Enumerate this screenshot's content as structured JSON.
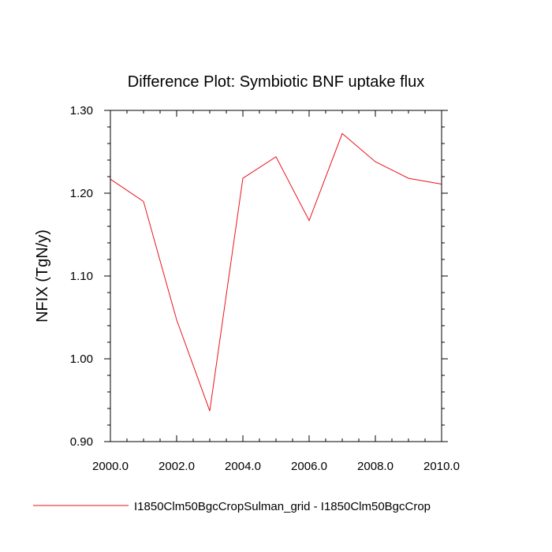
{
  "chart_data": {
    "type": "line",
    "title": "Difference Plot: Symbiotic BNF uptake flux",
    "xlabel": "",
    "ylabel": "NFIX  (TgN/y)",
    "xlim": [
      2000,
      2010
    ],
    "ylim": [
      0.9,
      1.3
    ],
    "xticks": [
      {
        "value": 2000,
        "label": "2000.0"
      },
      {
        "value": 2002,
        "label": "2002.0"
      },
      {
        "value": 2004,
        "label": "2004.0"
      },
      {
        "value": 2006,
        "label": "2006.0"
      },
      {
        "value": 2008,
        "label": "2008.0"
      },
      {
        "value": 2010,
        "label": "2010.0"
      }
    ],
    "yticks": [
      {
        "value": 0.9,
        "label": "0.90"
      },
      {
        "value": 1.0,
        "label": "1.00"
      },
      {
        "value": 1.1,
        "label": "1.10"
      },
      {
        "value": 1.2,
        "label": "1.20"
      },
      {
        "value": 1.3,
        "label": "1.30"
      }
    ],
    "x_minor_step": 0.5,
    "y_minor_step": 0.02,
    "grid": false,
    "legend_position": "bottom",
    "series": [
      {
        "name": "I1850Clm50BgcCropSulman_grid - I1850Clm50BgcCrop",
        "color": "#e8141e",
        "x": [
          2000,
          2001,
          2002,
          2003,
          2004,
          2005,
          2006,
          2007,
          2008,
          2009,
          2010
        ],
        "y": [
          1.217,
          1.19,
          1.047,
          0.937,
          1.218,
          1.244,
          1.167,
          1.272,
          1.238,
          1.218,
          1.211
        ]
      }
    ]
  }
}
